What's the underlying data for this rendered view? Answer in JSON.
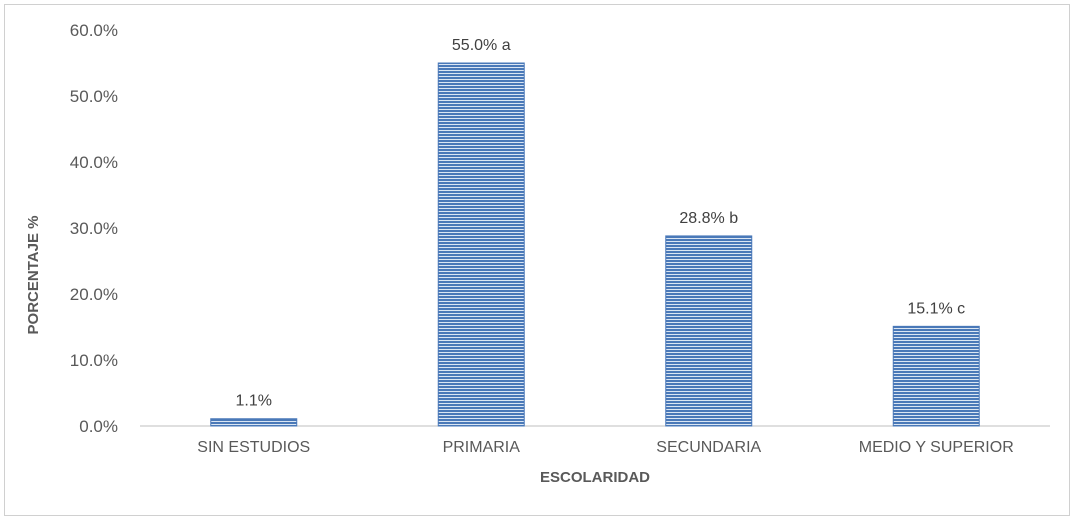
{
  "chart_data": {
    "type": "bar",
    "title": "",
    "xlabel": "ESCOLARIDAD",
    "ylabel": "PORCENTAJE %",
    "categories": [
      "SIN ESTUDIOS",
      "PRIMARIA",
      "SECUNDARIA",
      "MEDIO Y SUPERIOR"
    ],
    "values": [
      1.1,
      55.0,
      28.8,
      15.1
    ],
    "data_labels": [
      "1.1%",
      "55.0% a",
      "28.8% b",
      "15.1% c"
    ],
    "ylim": [
      0,
      60
    ],
    "yticks": [
      0,
      10,
      20,
      30,
      40,
      50,
      60
    ],
    "ytick_labels": [
      "0.0%",
      "10.0%",
      "20.0%",
      "30.0%",
      "40.0%",
      "50.0%",
      "60.0%"
    ],
    "grid": false,
    "legend": "none",
    "bar_color": "#4a79b8",
    "bar_pattern": "horizontal-stripes"
  }
}
